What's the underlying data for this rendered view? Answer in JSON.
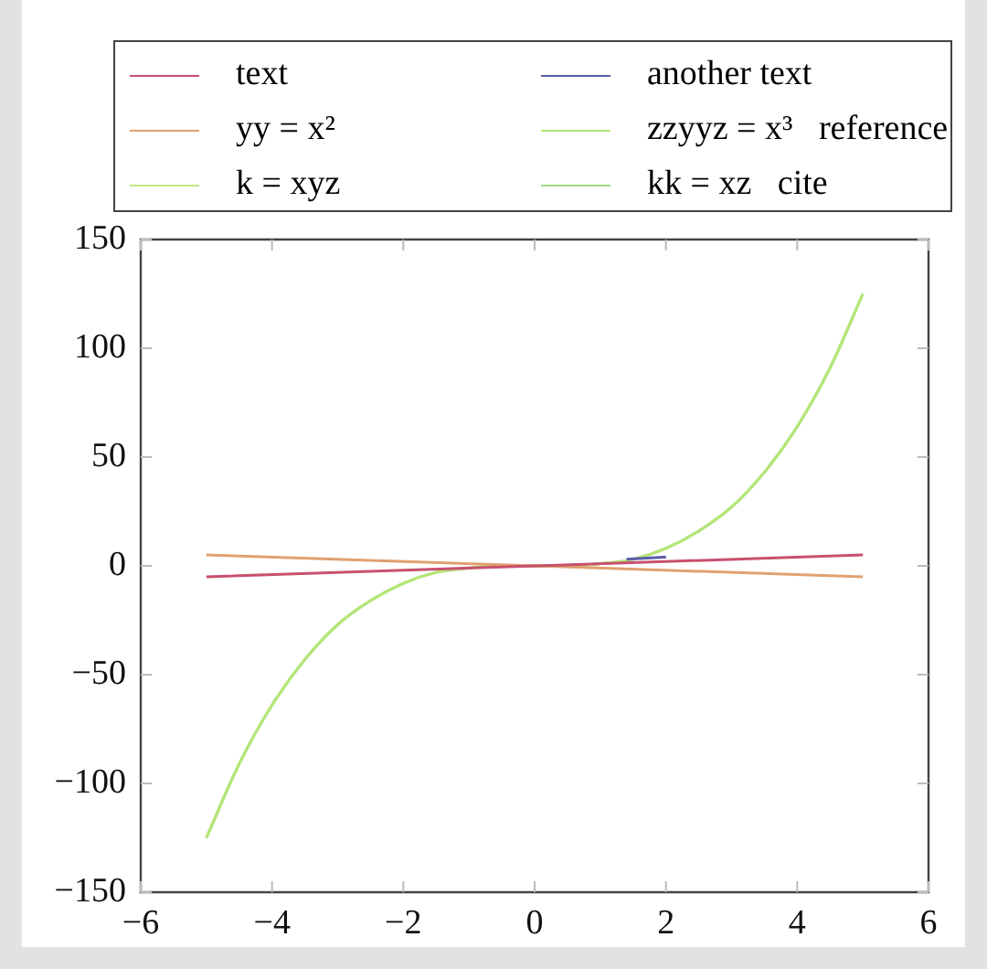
{
  "chart_data": {
    "type": "line",
    "x": [
      -5,
      -4.5,
      -4,
      -3.5,
      -3,
      -2.5,
      -2,
      -1.5,
      -1,
      -0.5,
      0,
      0.5,
      1,
      1.5,
      2,
      2.5,
      3,
      3.5,
      4,
      4.5,
      5
    ],
    "series": [
      {
        "name": "text",
        "color": "#c8506e",
        "x": [
          -5,
          5
        ],
        "values": [
          -5,
          5
        ]
      },
      {
        "name": "another text",
        "color": "#5b5ba8",
        "x": [
          1.4,
          2
        ],
        "values": [
          3,
          4
        ]
      },
      {
        "name": "yy = x²",
        "color": "#e0a070",
        "x": [
          -5,
          5
        ],
        "values": [
          5,
          -5
        ]
      },
      {
        "name": "zzyyz = x³   reference",
        "color": "#b5e57a",
        "values": [
          -125,
          -91,
          -64,
          -43,
          -27,
          -16,
          -8,
          -3,
          -1,
          0,
          0,
          0,
          1,
          3,
          8,
          16,
          27,
          43,
          64,
          91,
          125
        ]
      },
      {
        "name": "k = xyz",
        "color": "#c0ea80",
        "values": [
          -125,
          -91,
          -64,
          -43,
          -27,
          -16,
          -8,
          -3,
          -1,
          0,
          0,
          0,
          1,
          3,
          8,
          16,
          27,
          43,
          64,
          91,
          125
        ]
      },
      {
        "name": "kk = xz   cite",
        "color": "#9fdc80",
        "values": [
          -125,
          -91,
          -64,
          -43,
          -27,
          -16,
          -8,
          -3,
          -1,
          0,
          0,
          0,
          1,
          3,
          8,
          16,
          27,
          43,
          64,
          91,
          125
        ]
      }
    ],
    "xlim": [
      -6,
      6
    ],
    "xticks": [
      -6,
      -4,
      -2,
      0,
      2,
      4,
      6
    ],
    "ylim": [
      -150,
      150
    ],
    "yticks": [
      -150,
      -100,
      -50,
      0,
      50,
      100,
      150
    ],
    "grid": false,
    "legend": "top",
    "marker": "none",
    "line_style": "solid"
  }
}
